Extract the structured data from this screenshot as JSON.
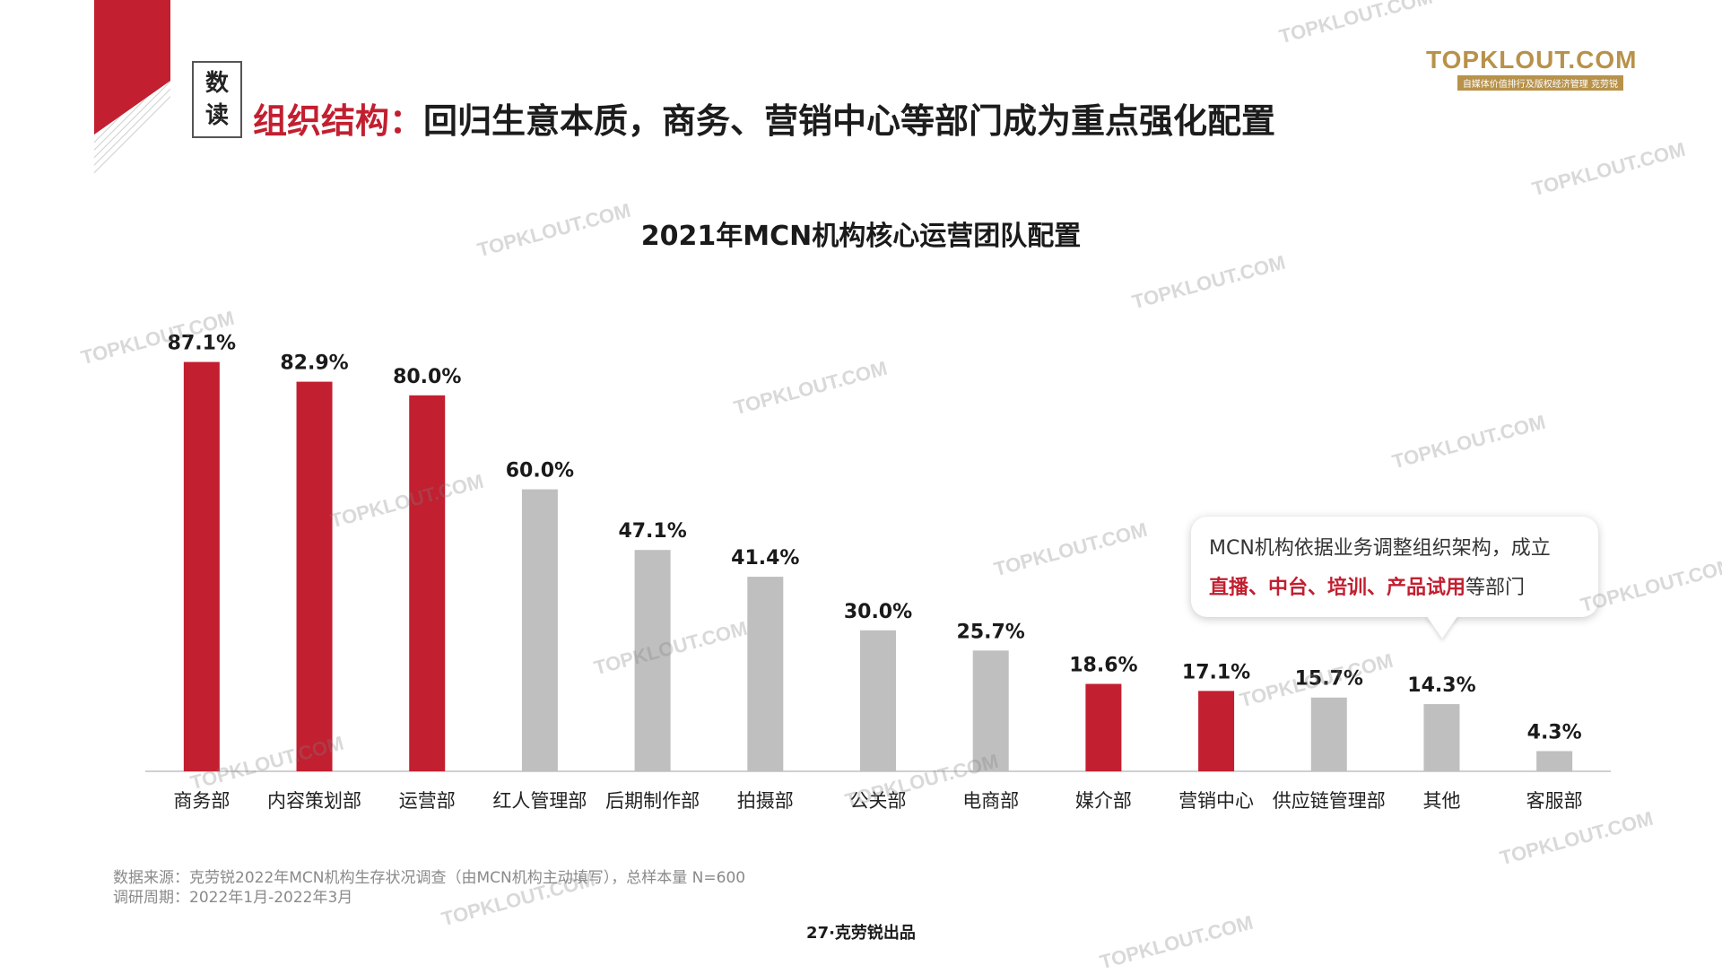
{
  "header": {
    "badge_line1": "数",
    "badge_line2": "读",
    "headline_accent": "组织结构：",
    "headline_rest": "回归生意本质，商务、营销中心等部门成为重点强化配置"
  },
  "logo": {
    "main": "TOPKLOUT.COM",
    "sub": "自媒体价值排行及版权经济管理 克劳锐"
  },
  "watermark_text": "TOPKLOUT.COM",
  "callout": {
    "line1": "MCN机构依据业务调整组织架构，成立",
    "highlight": "直播、中台、培训、产品试用",
    "suffix": "等部门"
  },
  "footer": {
    "source_line1": "数据来源：克劳锐2022年MCN机构生存状况调查（由MCN机构主动填写），总样本量 N=600",
    "source_line2": "调研周期：2022年1月-2022年3月",
    "page": "27·克劳锐出品"
  },
  "colors": {
    "accent": "#c21f30",
    "muted_bar": "#bfbfbf"
  },
  "chart_data": {
    "type": "bar",
    "title": "2021年MCN机构核心运营团队配置",
    "xlabel": "",
    "ylabel": "",
    "ylim": [
      0,
      100
    ],
    "grid": false,
    "value_suffix": "%",
    "categories": [
      "商务部",
      "内容策划部",
      "运营部",
      "红人管理部",
      "后期制作部",
      "拍摄部",
      "公关部",
      "电商部",
      "媒介部",
      "营销中心",
      "供应链管理部",
      "其他",
      "客服部"
    ],
    "values": [
      87.1,
      82.9,
      80.0,
      60.0,
      47.1,
      41.4,
      30.0,
      25.7,
      18.6,
      17.1,
      15.7,
      14.3,
      4.3
    ],
    "highlighted": [
      true,
      true,
      true,
      false,
      false,
      false,
      false,
      false,
      true,
      true,
      false,
      false,
      false
    ]
  }
}
